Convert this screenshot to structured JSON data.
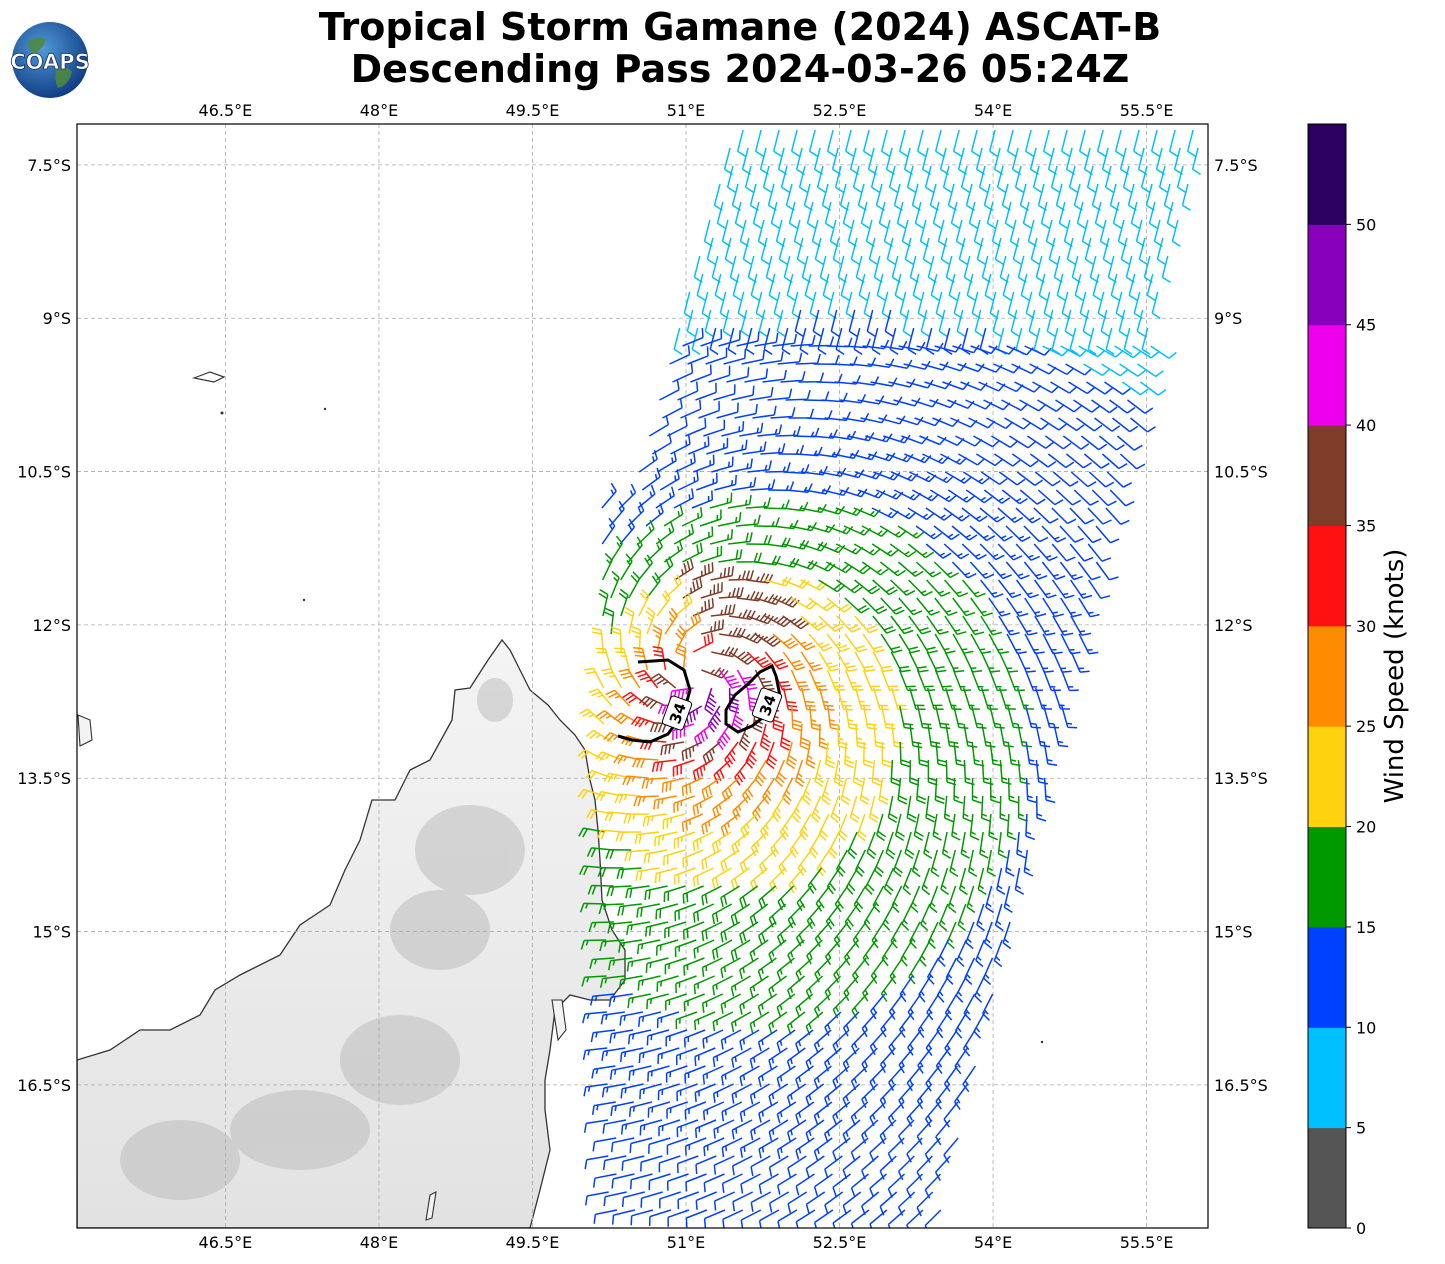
{
  "title": {
    "line1": "Tropical Storm Gamane (2024) ASCAT-B",
    "line2": "Descending Pass 2024-03-26 05:24Z"
  },
  "logo": {
    "text": "COAPS",
    "icon": "globe-icon"
  },
  "map": {
    "lon_range": [
      45.05,
      56.1
    ],
    "lat_range": [
      -17.9,
      -7.1
    ],
    "lon_ticks": [
      "46.5°E",
      "48°E",
      "49.5°E",
      "51°E",
      "52.5°E",
      "54°E",
      "55.5°E"
    ],
    "lat_ticks": [
      "7.5°S",
      "9°S",
      "10.5°S",
      "12°S",
      "13.5°S",
      "15°S",
      "16.5°S"
    ],
    "lon_tick_values": [
      46.5,
      48,
      49.5,
      51,
      52.5,
      54,
      55.5
    ],
    "lat_tick_values": [
      -7.5,
      -9,
      -10.5,
      -12,
      -13.5,
      -15,
      -16.5
    ],
    "gridlines": true,
    "land": "Madagascar",
    "contour_label": "34",
    "contour_labels": [
      "34",
      "34"
    ],
    "storm_center": {
      "lon": 51.1,
      "lat": -12.5
    }
  },
  "colorbar": {
    "label": "Wind Speed (knots)",
    "ticks": [
      "0",
      "5",
      "10",
      "15",
      "20",
      "25",
      "30",
      "35",
      "40",
      "45",
      "50"
    ],
    "bounds": [
      0,
      5,
      10,
      15,
      20,
      25,
      30,
      35,
      40,
      45,
      50,
      55
    ],
    "colors": [
      "#555555",
      "#00bfff",
      "#0040ff",
      "#009900",
      "#ffd20f",
      "#ff8c00",
      "#ff1010",
      "#7f3c28",
      "#ee00ee",
      "#8800bb",
      "#2a0060"
    ]
  }
}
